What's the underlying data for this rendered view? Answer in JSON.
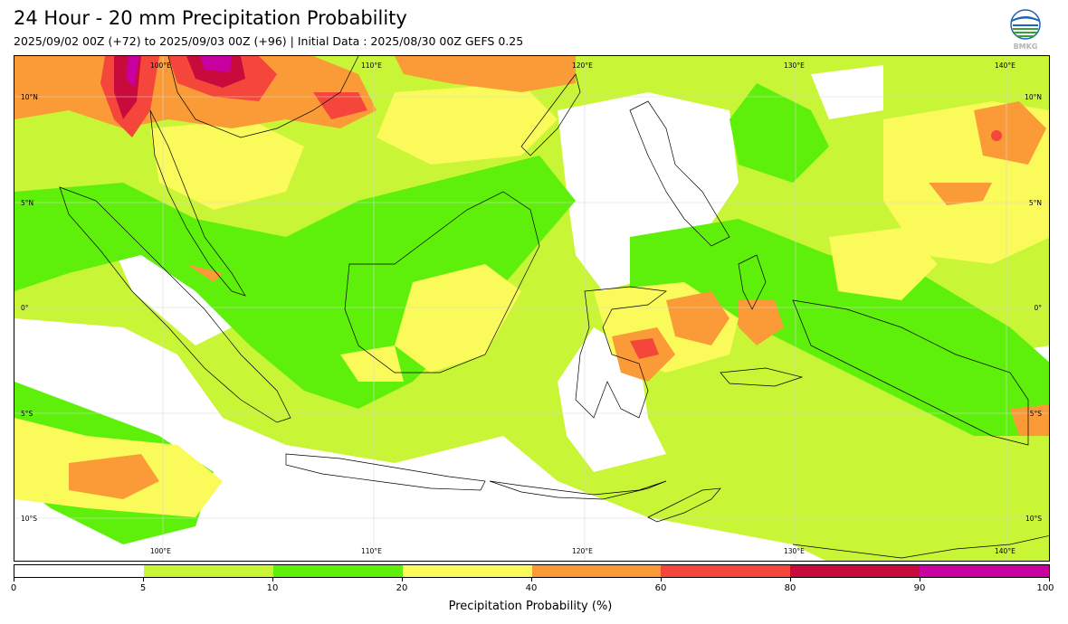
{
  "header": {
    "title": "24 Hour - 20 mm Precipitation Probability",
    "subtitle": "2025/09/02 00Z (+72) to 2025/09/03 00Z (+96) | Initial Data : 2025/08/30 00Z GEFS 0.25",
    "logo_text": "BMKG"
  },
  "map": {
    "lon_labels_top": [
      "100°E",
      "110°E",
      "120°E",
      "130°E",
      "140°E"
    ],
    "lon_labels_bottom": [
      "100°E",
      "110°E",
      "120°E",
      "130°E",
      "140°E"
    ],
    "lat_labels_left": [
      "10°N",
      "5°N",
      "0°",
      "5°S",
      "10°S"
    ],
    "lat_labels_right": [
      "10°N",
      "5°N",
      "0°",
      "5°S",
      "10°S"
    ],
    "extent": {
      "lon": [
        93,
        142
      ],
      "lat": [
        -12,
        11
      ]
    }
  },
  "colorbar": {
    "title": "Precipitation Probability (%)",
    "ticks": [
      "0",
      "5",
      "10",
      "20",
      "40",
      "60",
      "80",
      "90",
      "100"
    ],
    "colors": [
      "#ffffff",
      "#c8f535",
      "#5ef00a",
      "#fafa5a",
      "#fa9b37",
      "#f5463c",
      "#c80a3c",
      "#c800a0"
    ]
  }
}
